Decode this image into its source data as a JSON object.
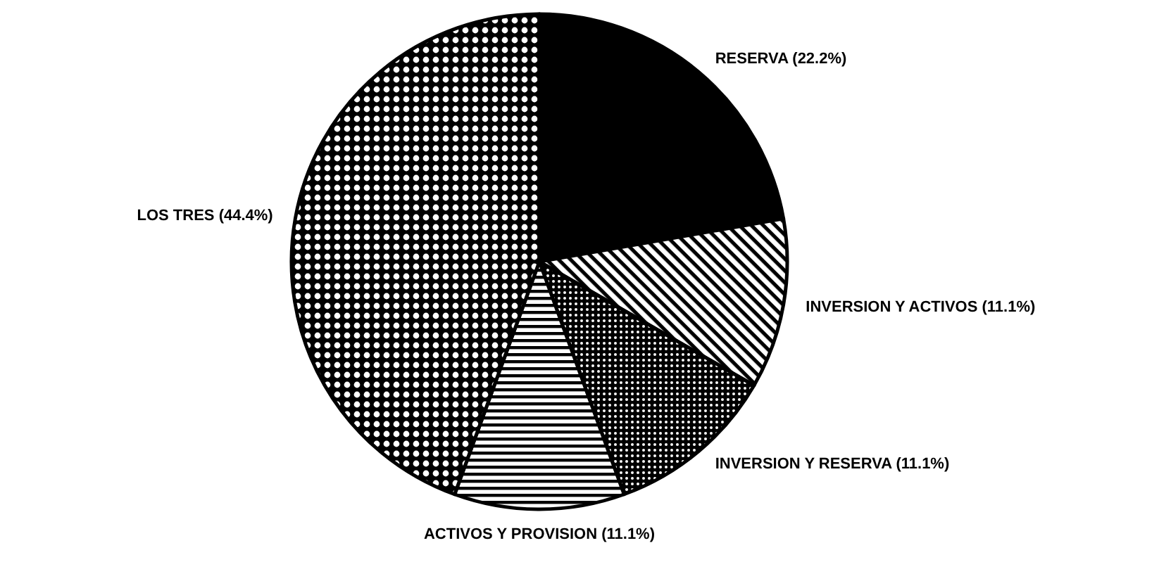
{
  "chart_data": {
    "type": "pie",
    "categories": [
      "RESERVA (22.2%)",
      "INVERSION Y ACTIVOS (11.1%)",
      "INVERSION Y RESERVA (11.1%)",
      "ACTIVOS Y PROVISION (11.1%)",
      "LOS TRES (44.4%)"
    ],
    "values": [
      22.2,
      11.1,
      11.1,
      11.1,
      44.4
    ],
    "colors": [
      "#000000",
      "#000000",
      "#000000",
      "#000000",
      "#000000"
    ]
  }
}
